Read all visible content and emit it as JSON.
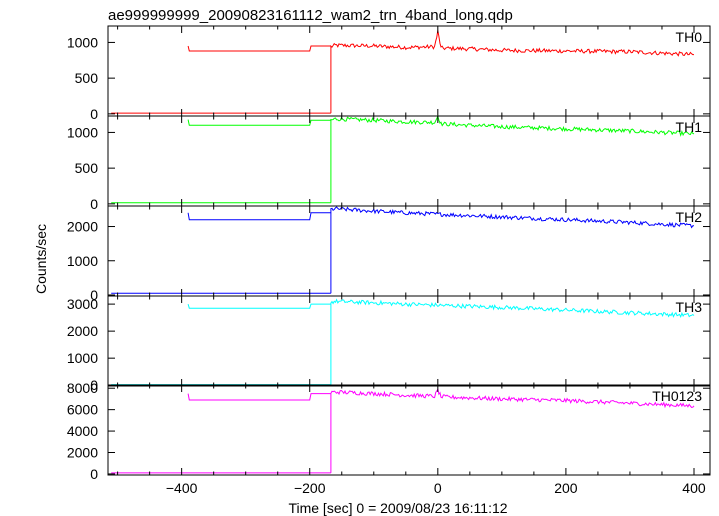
{
  "chart_data": {
    "type": "line",
    "title": "ae999999999_20090823161112_wam2_trn_4band_long.qdp",
    "xlabel": "Time [sec] 0 = 2009/08/23 16:11:12",
    "ylabel": "Counts/sec",
    "xlim": [
      -515,
      425
    ],
    "x_ticks": [
      -400,
      -200,
      0,
      200,
      400
    ],
    "grid": false,
    "legend": "per-panel label, top-right",
    "panels": [
      {
        "label": "TH0",
        "color": "#ff0000",
        "ylim": [
          -30,
          1230
        ],
        "y_ticks": [
          0,
          500,
          1000
        ],
        "series": [
          {
            "x": [
              -510,
              -167
            ],
            "y": [
              10,
              10
            ]
          },
          {
            "x": [
              -390,
              -388,
              -200,
              -198,
              -167
            ],
            "y": [
              950,
              880,
              880,
              950,
              950
            ]
          },
          {
            "x": [
              -167,
              -160,
              -100,
              -50,
              -5,
              0,
              5,
              50,
              100,
              200,
              300,
              400
            ],
            "y": [
              940,
              960,
              950,
              930,
              940,
              1150,
              920,
              910,
              890,
              880,
              870,
              830
            ]
          }
        ]
      },
      {
        "label": "TH1",
        "color": "#00ff00",
        "ylim": [
          -30,
          1230
        ],
        "y_ticks": [
          0,
          500,
          1000
        ],
        "series": [
          {
            "x": [
              -510,
              -167
            ],
            "y": [
              15,
              15
            ]
          },
          {
            "x": [
              -390,
              -388,
              -200,
              -198,
              -167
            ],
            "y": [
              1180,
              1100,
              1100,
              1170,
              1170
            ]
          },
          {
            "x": [
              -167,
              -160,
              -100,
              -50,
              -5,
              0,
              5,
              50,
              100,
              200,
              300,
              400
            ],
            "y": [
              1170,
              1190,
              1170,
              1150,
              1140,
              1230,
              1120,
              1100,
              1080,
              1050,
              1020,
              980
            ]
          }
        ]
      },
      {
        "label": "TH2",
        "color": "#0000ff",
        "ylim": [
          -30,
          2600
        ],
        "y_ticks": [
          0,
          1000,
          2000
        ],
        "series": [
          {
            "x": [
              -510,
              -167
            ],
            "y": [
              50,
              50
            ]
          },
          {
            "x": [
              -390,
              -388,
              -200,
              -198,
              -167
            ],
            "y": [
              2400,
              2200,
              2200,
              2400,
              2400
            ]
          },
          {
            "x": [
              -167,
              -160,
              -100,
              -50,
              0,
              50,
              100,
              200,
              300,
              400
            ],
            "y": [
              2500,
              2520,
              2450,
              2400,
              2360,
              2320,
              2280,
              2200,
              2120,
              2020
            ]
          }
        ]
      },
      {
        "label": "TH3",
        "color": "#00ffff",
        "ylim": [
          -30,
          3300
        ],
        "y_ticks": [
          0,
          1000,
          2000,
          3000
        ],
        "series": [
          {
            "x": [
              -510,
              -167
            ],
            "y": [
              20,
              20
            ]
          },
          {
            "x": [
              -390,
              -388,
              -200,
              -198,
              -167
            ],
            "y": [
              3000,
              2850,
              2850,
              3000,
              3000
            ]
          },
          {
            "x": [
              -167,
              -160,
              -100,
              -50,
              0,
              50,
              100,
              200,
              300,
              400
            ],
            "y": [
              3070,
              3100,
              3050,
              3000,
              2960,
              2920,
              2880,
              2780,
              2680,
              2580
            ]
          }
        ]
      },
      {
        "label": "TH0123",
        "color": "#ff00ff",
        "ylim": [
          -100,
          8300
        ],
        "y_ticks": [
          0,
          2000,
          4000,
          6000,
          8000
        ],
        "series": [
          {
            "x": [
              -510,
              -167
            ],
            "y": [
              100,
              100
            ]
          },
          {
            "x": [
              -390,
              -388,
              -200,
              -198,
              -167
            ],
            "y": [
              7500,
              6900,
              6900,
              7500,
              7500
            ]
          },
          {
            "x": [
              -167,
              -160,
              -100,
              -50,
              -5,
              0,
              5,
              50,
              100,
              200,
              300,
              400
            ],
            "y": [
              7600,
              7650,
              7500,
              7350,
              7250,
              7800,
              7200,
              7100,
              7000,
              6850,
              6600,
              6350
            ]
          }
        ]
      }
    ]
  }
}
